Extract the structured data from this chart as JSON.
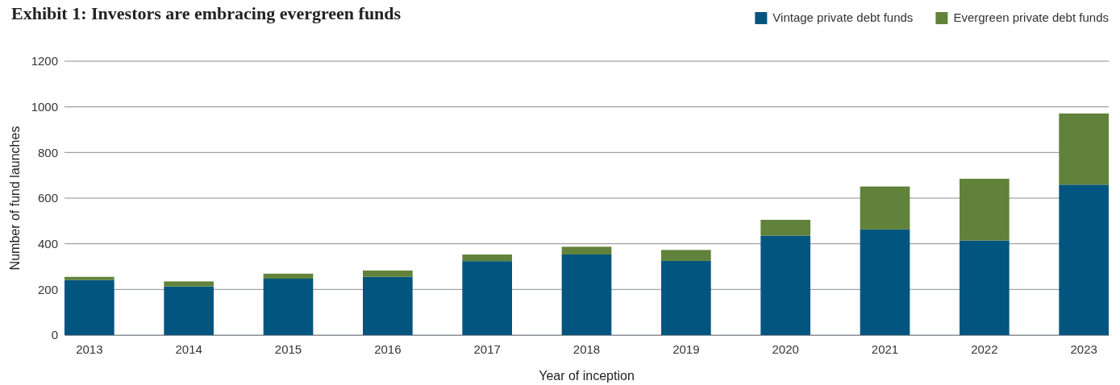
{
  "chart_data": {
    "type": "bar",
    "title": "Exhibit 1: Investors are embracing evergreen funds",
    "xlabel": "Year of inception",
    "ylabel": "Number of fund launches",
    "categories": [
      "2013",
      "2014",
      "2015",
      "2016",
      "2017",
      "2018",
      "2019",
      "2020",
      "2021",
      "2022",
      "2023"
    ],
    "series": [
      {
        "name": "Vintage private debt funds",
        "color": "#02557e",
        "values": [
          241,
          213,
          247,
          255,
          324,
          353,
          325,
          436,
          463,
          414,
          659
        ]
      },
      {
        "name": "Evergreen private debt funds",
        "color": "#60823a",
        "values": [
          14,
          22,
          22,
          28,
          29,
          34,
          48,
          69,
          188,
          271,
          312
        ]
      }
    ],
    "stacked": true,
    "ylim": [
      0,
      1200
    ],
    "yticks": [
      0,
      200,
      400,
      600,
      800,
      1000,
      1200
    ],
    "grid": "y",
    "legend": "top right"
  }
}
